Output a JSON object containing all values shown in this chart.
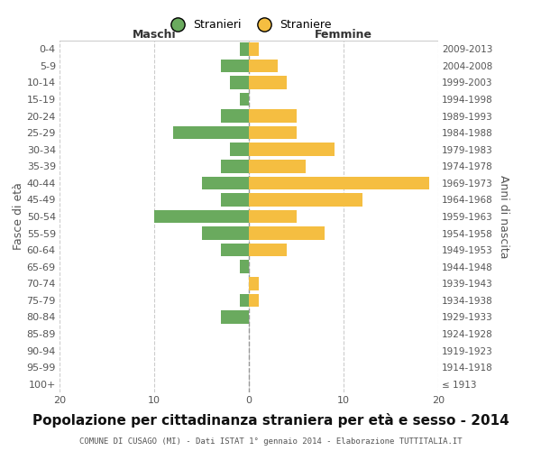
{
  "age_groups": [
    "100+",
    "95-99",
    "90-94",
    "85-89",
    "80-84",
    "75-79",
    "70-74",
    "65-69",
    "60-64",
    "55-59",
    "50-54",
    "45-49",
    "40-44",
    "35-39",
    "30-34",
    "25-29",
    "20-24",
    "15-19",
    "10-14",
    "5-9",
    "0-4"
  ],
  "birth_years": [
    "≤ 1913",
    "1914-1918",
    "1919-1923",
    "1924-1928",
    "1929-1933",
    "1934-1938",
    "1939-1943",
    "1944-1948",
    "1949-1953",
    "1954-1958",
    "1959-1963",
    "1964-1968",
    "1969-1973",
    "1974-1978",
    "1979-1983",
    "1984-1988",
    "1989-1993",
    "1994-1998",
    "1999-2003",
    "2004-2008",
    "2009-2013"
  ],
  "males": [
    0,
    0,
    0,
    0,
    3,
    1,
    0,
    1,
    3,
    5,
    10,
    3,
    5,
    3,
    2,
    8,
    3,
    1,
    2,
    3,
    1
  ],
  "females": [
    0,
    0,
    0,
    0,
    0,
    1,
    1,
    0,
    4,
    8,
    5,
    12,
    19,
    6,
    9,
    5,
    5,
    0,
    4,
    3,
    1
  ],
  "male_color": "#6aaa5e",
  "female_color": "#f5be41",
  "background_color": "#ffffff",
  "grid_color": "#cccccc",
  "title": "Popolazione per cittadinanza straniera per età e sesso - 2014",
  "subtitle": "COMUNE DI CUSAGO (MI) - Dati ISTAT 1° gennaio 2014 - Elaborazione TUTTITALIA.IT",
  "xlabel_left": "Maschi",
  "xlabel_right": "Femmine",
  "ylabel_left": "Fasce di età",
  "ylabel_right": "Anni di nascita",
  "legend_stranieri": "Stranieri",
  "legend_straniere": "Straniere",
  "xlim": 20,
  "tick_fontsize": 8,
  "label_fontsize": 9,
  "title_fontsize": 11
}
